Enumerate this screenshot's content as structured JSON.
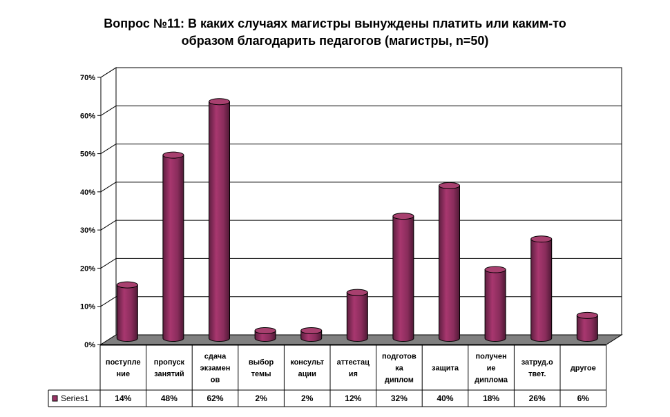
{
  "chart_data": {
    "type": "bar",
    "title_lines": [
      "Вопрос №11: В каких случаях магистры вынуждены платить или каким-то",
      "образом благодарить педагогов (магистры, n=50)"
    ],
    "categories": [
      [
        "поступле",
        "ние"
      ],
      [
        "пропуск",
        "занятий"
      ],
      [
        "сдача",
        "экзамен",
        "ов"
      ],
      [
        "выбор",
        "темы"
      ],
      [
        "консульт",
        "ации"
      ],
      [
        "аттестац",
        "ия"
      ],
      [
        "подготов",
        "ка",
        "диплом"
      ],
      [
        "защита"
      ],
      [
        "получен",
        "ие",
        "диплома"
      ],
      [
        "затруд.о",
        "твет."
      ],
      [
        "другое"
      ]
    ],
    "series": [
      {
        "name": "Series1",
        "values": [
          14,
          48,
          62,
          2,
          2,
          12,
          32,
          40,
          18,
          26,
          6
        ],
        "labels": [
          "14%",
          "48%",
          "62%",
          "2%",
          "2%",
          "12%",
          "32%",
          "40%",
          "18%",
          "26%",
          "6%"
        ],
        "color": "#993366"
      }
    ],
    "yticks": [
      "0%",
      "10%",
      "20%",
      "30%",
      "40%",
      "50%",
      "60%",
      "70%"
    ],
    "ylim": [
      0,
      70
    ],
    "grid": true,
    "data_table": true,
    "legend": "data-table-left",
    "colors": {
      "bar": "#993366",
      "floor": "#808080",
      "grid": "#000000"
    }
  }
}
